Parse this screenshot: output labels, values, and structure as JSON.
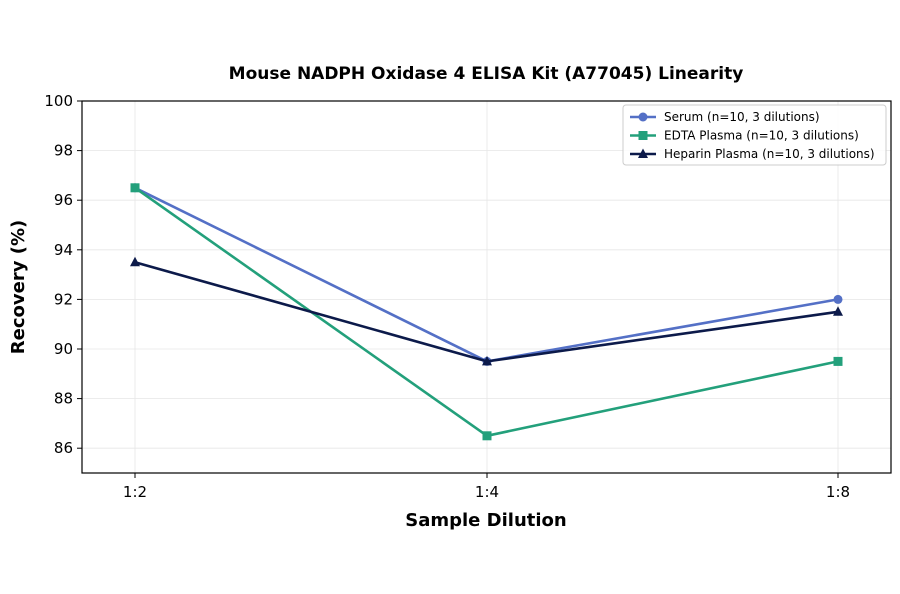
{
  "chart_data": {
    "type": "line",
    "title": "Mouse NADPH Oxidase 4 ELISA Kit (A77045) Linearity",
    "xlabel": "Sample Dilution",
    "ylabel": "Recovery (%)",
    "categories": [
      "1:2",
      "1:4",
      "1:8"
    ],
    "ylim": [
      85,
      100
    ],
    "yticks": [
      86,
      88,
      90,
      92,
      94,
      96,
      98,
      100
    ],
    "grid": true,
    "legend_position": "top-right",
    "series": [
      {
        "name": "Serum (n=10, 3 dilutions)",
        "values": [
          96.5,
          89.5,
          92.0
        ],
        "color": "#5470c6",
        "marker": "circle"
      },
      {
        "name": "EDTA Plasma (n=10, 3 dilutions)",
        "values": [
          96.5,
          86.5,
          89.5
        ],
        "color": "#23a07b",
        "marker": "square"
      },
      {
        "name": "Heparin Plasma (n=10, 3 dilutions)",
        "values": [
          93.5,
          89.5,
          91.5
        ],
        "color": "#0c1a4a",
        "marker": "triangle"
      }
    ]
  }
}
